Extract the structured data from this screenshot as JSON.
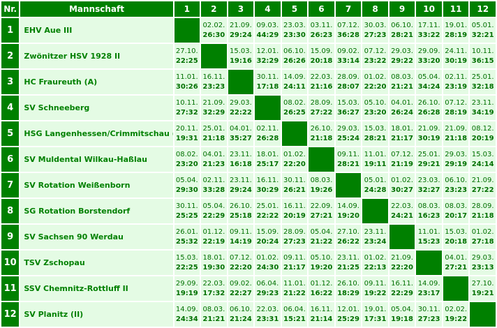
{
  "header": {
    "nr": "Nr.",
    "team": "Mannschaft",
    "cols": [
      "1",
      "2",
      "3",
      "4",
      "5",
      "6",
      "7",
      "8",
      "9",
      "10",
      "11",
      "12"
    ]
  },
  "rows": [
    {
      "nr": "1",
      "team": "EHV Aue III",
      "cells": [
        null,
        [
          "02.02.",
          "26:30"
        ],
        [
          "21.09.",
          "29:24"
        ],
        [
          "09.03.",
          "44:29"
        ],
        [
          "23.03.",
          "23:30"
        ],
        [
          "03.11.",
          "26:23"
        ],
        [
          "07.12.",
          "36:28"
        ],
        [
          "30.03.",
          "27:23"
        ],
        [
          "06.10.",
          "28:21"
        ],
        [
          "17.11.",
          "33:22"
        ],
        [
          "19.01.",
          "28:19"
        ],
        [
          "05.01.",
          "32:21"
        ]
      ]
    },
    {
      "nr": "2",
      "team": "Zwönitzer HSV 1928 II",
      "cells": [
        [
          "27.10.",
          "22:25"
        ],
        null,
        [
          "15.03.",
          "19:16"
        ],
        [
          "12.01.",
          "32:29"
        ],
        [
          "06.10.",
          "26:26"
        ],
        [
          "15.09.",
          "20:18"
        ],
        [
          "09.02.",
          "33:14"
        ],
        [
          "07.12.",
          "23:22"
        ],
        [
          "29.03.",
          "29:22"
        ],
        [
          "29.09.",
          "33:20"
        ],
        [
          "24.11.",
          "30:19"
        ],
        [
          "10.11.",
          "36:15"
        ]
      ]
    },
    {
      "nr": "3",
      "team": "HC Fraureuth (A)",
      "cells": [
        [
          "11.01.",
          "30:26"
        ],
        [
          "16.11.",
          "23:23"
        ],
        null,
        [
          "30.11.",
          "17:18"
        ],
        [
          "14.09.",
          "24:11"
        ],
        [
          "22.03.",
          "21:16"
        ],
        [
          "28.09.",
          "28:07"
        ],
        [
          "01.02.",
          "22:20"
        ],
        [
          "08.03.",
          "21:21"
        ],
        [
          "05.04.",
          "34:24"
        ],
        [
          "02.11.",
          "23:19"
        ],
        [
          "25.01.",
          "32:18"
        ]
      ]
    },
    {
      "nr": "4",
      "team": "SV Schneeberg",
      "cells": [
        [
          "10.11.",
          "27:32"
        ],
        [
          "21.09.",
          "32:29"
        ],
        [
          "29.03.",
          "22:22"
        ],
        null,
        [
          "08.02.",
          "26:25"
        ],
        [
          "28.09.",
          "27:22"
        ],
        [
          "15.03.",
          "36:27"
        ],
        [
          "05.10.",
          "23:20"
        ],
        [
          "04.01.",
          "26:24"
        ],
        [
          "26.10.",
          "26:28"
        ],
        [
          "07.12.",
          "28:19"
        ],
        [
          "23.11.",
          "34:19"
        ]
      ]
    },
    {
      "nr": "5",
      "team": "HSG Langenhessen/Crimmitschau (II)",
      "cells": [
        [
          "20.11.",
          "19:31"
        ],
        [
          "25.01.",
          "21:18"
        ],
        [
          "04.01.",
          "35:27"
        ],
        [
          "02.11.",
          "26:28"
        ],
        null,
        [
          "26.10.",
          "21:18"
        ],
        [
          "29.03.",
          "25:24"
        ],
        [
          "15.03.",
          "28:21"
        ],
        [
          "18.01.",
          "21:17"
        ],
        [
          "21.09.",
          "30:19"
        ],
        [
          "21.09.",
          "21:18"
        ],
        [
          "08.12.",
          "20:19"
        ]
      ]
    },
    {
      "nr": "6",
      "team": "SV Muldental Wilkau-Haßlau",
      "cells": [
        [
          "08.02.",
          "23:20"
        ],
        [
          "04.01.",
          "21:23"
        ],
        [
          "23.11.",
          "16:18"
        ],
        [
          "18.01.",
          "25:17"
        ],
        [
          "01.02.",
          "22:20"
        ],
        null,
        [
          "09.11.",
          "28:21"
        ],
        [
          "11.01.",
          "19:11"
        ],
        [
          "07.12.",
          "21:19"
        ],
        [
          "25.01.",
          "29:21"
        ],
        [
          "29.03.",
          "29:19"
        ],
        [
          "15.03.",
          "24:14"
        ]
      ]
    },
    {
      "nr": "7",
      "team": "SV Rotation Weißenborn",
      "cells": [
        [
          "05.04.",
          "29:30"
        ],
        [
          "02.11.",
          "33:28"
        ],
        [
          "23.11.",
          "29:24"
        ],
        [
          "16.11.",
          "30:29"
        ],
        [
          "30.11.",
          "26:21"
        ],
        [
          "08.03.",
          "19:26"
        ],
        null,
        [
          "05.01.",
          "24:28"
        ],
        [
          "01.02.",
          "30:27"
        ],
        [
          "23.03.",
          "32:27"
        ],
        [
          "06.10.",
          "23:23"
        ],
        [
          "21.09.",
          "27:22"
        ]
      ]
    },
    {
      "nr": "8",
      "team": "SG Rotation Borstendorf",
      "cells": [
        [
          "30.11.",
          "25:25"
        ],
        [
          "05.04.",
          "22:29"
        ],
        [
          "26.10.",
          "25:18"
        ],
        [
          "25.01.",
          "22:22"
        ],
        [
          "16.11.",
          "20:19"
        ],
        [
          "22.09.",
          "27:21"
        ],
        [
          "14.09.",
          "19:20"
        ],
        null,
        [
          "22.03.",
          "24:21"
        ],
        [
          "08.03.",
          "16:23"
        ],
        [
          "08.03.",
          "20:17"
        ],
        [
          "28.09.",
          "21:18"
        ]
      ]
    },
    {
      "nr": "9",
      "team": "SV Sachsen 90 Werdau",
      "cells": [
        [
          "26.01.",
          "25:32"
        ],
        [
          "01.12.",
          "22:19"
        ],
        [
          "09.11.",
          "14:19"
        ],
        [
          "15.09.",
          "20:24"
        ],
        [
          "28.09.",
          "27:23"
        ],
        [
          "05.04.",
          "21:22"
        ],
        [
          "27.10.",
          "26:22"
        ],
        [
          "23.11.",
          "23:24"
        ],
        null,
        [
          "11.01.",
          "15:23"
        ],
        [
          "15.03.",
          "20:18"
        ],
        [
          "01.02.",
          "27:18"
        ]
      ]
    },
    {
      "nr": "10",
      "team": "TSV Zschopau",
      "cells": [
        [
          "15.03.",
          "22:25"
        ],
        [
          "18.01.",
          "19:30"
        ],
        [
          "07.12.",
          "22:20"
        ],
        [
          "01.02.",
          "24:30"
        ],
        [
          "09.11.",
          "21:17"
        ],
        [
          "05.10.",
          "19:20"
        ],
        [
          "23.11.",
          "21:25"
        ],
        [
          "01.02.",
          "22:13"
        ],
        [
          "21.09.",
          "22:20"
        ],
        null,
        [
          "04.01.",
          "27:21"
        ],
        [
          "29.03.",
          "23:13"
        ]
      ]
    },
    {
      "nr": "11",
      "team": "SSV Chemnitz-Rottluff II",
      "cells": [
        [
          "29.09.",
          "19:19"
        ],
        [
          "22.03.",
          "17:32"
        ],
        [
          "09.02.",
          "22:27"
        ],
        [
          "06.04.",
          "29:23"
        ],
        [
          "11.01.",
          "21:22"
        ],
        [
          "01.12.",
          "16:22"
        ],
        [
          "26.10.",
          "18:29"
        ],
        [
          "09.11.",
          "19:22"
        ],
        [
          "16.11.",
          "22:29"
        ],
        [
          "14.09.",
          "23:17"
        ],
        null,
        [
          "27.10.",
          "19:21"
        ]
      ]
    },
    {
      "nr": "12",
      "team": "SV Planitz (II)",
      "cells": [
        [
          "14.09.",
          "24:34"
        ],
        [
          "08.03.",
          "21:21"
        ],
        [
          "06.10.",
          "21:24"
        ],
        [
          "22.03.",
          "23:31"
        ],
        [
          "06.04.",
          "15:21"
        ],
        [
          "16.11.",
          "21:14"
        ],
        [
          "12.01.",
          "25:29"
        ],
        [
          "19.01.",
          "17:31"
        ],
        [
          "05.04.",
          "19:18"
        ],
        [
          "30.11.",
          "27:23"
        ],
        [
          "02.02.",
          "19:22"
        ],
        null
      ]
    }
  ]
}
